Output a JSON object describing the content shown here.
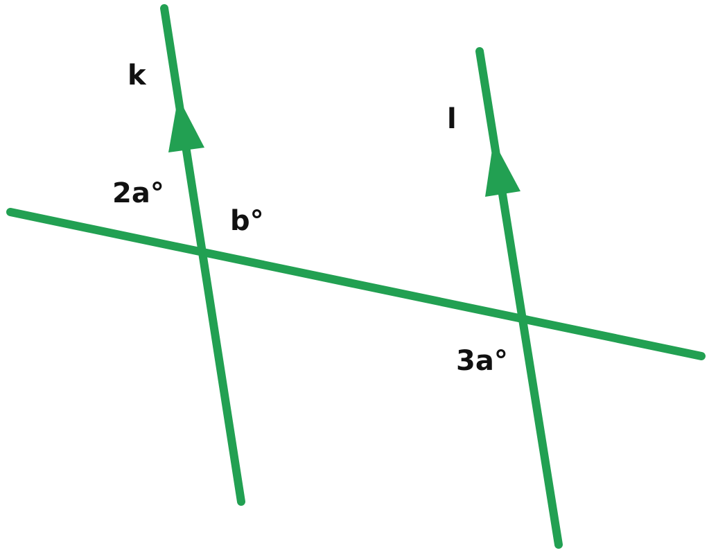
{
  "diagram": {
    "line_color": "#22a052",
    "text_color": "#111111",
    "labels": {
      "line_k": "k",
      "line_l": "l",
      "angle_upper_left": "2a°",
      "angle_upper_right": "b°",
      "angle_lower_left": "3a°"
    }
  }
}
